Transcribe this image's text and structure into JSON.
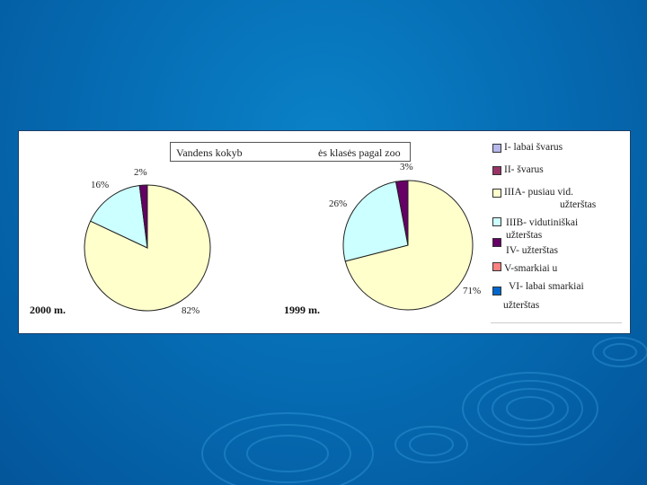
{
  "chart_data": [
    {
      "type": "pie",
      "title": "Vandens kokyb ės klasės pagal zoo",
      "label": "2000 m.",
      "slices": [
        {
          "category": "IIIA- pusiau vid. užterštas",
          "value": 82,
          "label": "82%"
        },
        {
          "category": "IIIB- vidutiniškai užterštas",
          "value": 16,
          "label": "16%"
        },
        {
          "category": "IV- užterštas",
          "value": 2,
          "label": "2%"
        }
      ]
    },
    {
      "type": "pie",
      "label": "1999 m.",
      "slices": [
        {
          "category": "IIIA- pusiau vid. užterštas",
          "value": 71,
          "label": "71%"
        },
        {
          "category": "IIIB- vidutiniškai užterštas",
          "value": 26,
          "label": "26%"
        },
        {
          "category": "IV- užterštas",
          "value": 3,
          "label": "3%"
        }
      ]
    }
  ],
  "header": {
    "title_part1": "Vandens kokyb",
    "title_part2": "ės klasės pagal zoo"
  },
  "legend": [
    {
      "name": "I- labai švarus",
      "line2": "",
      "color": "#b7b7ec"
    },
    {
      "name": "II- švarus",
      "line2": "",
      "color": "#993366"
    },
    {
      "name": "IIIA- pusiau vid.",
      "line2": "užterštas",
      "color": "#ffffcc"
    },
    {
      "name": "IIIB- vidutiniškai",
      "line2": "užterštas",
      "color": "#ccffff"
    },
    {
      "name": "IV- užterštas",
      "line2": "",
      "color": "#660066"
    },
    {
      "name": "V-smarkiai u",
      "line2": "",
      "color": "#ff8080"
    },
    {
      "name": "VI- labai smarkiai",
      "line2": "užterštas",
      "color": "#0066cc"
    }
  ],
  "colors": {
    "IIIA": "#ffffcc",
    "IIIB": "#ccffff",
    "IV": "#660066",
    "background": "#0569b0"
  }
}
